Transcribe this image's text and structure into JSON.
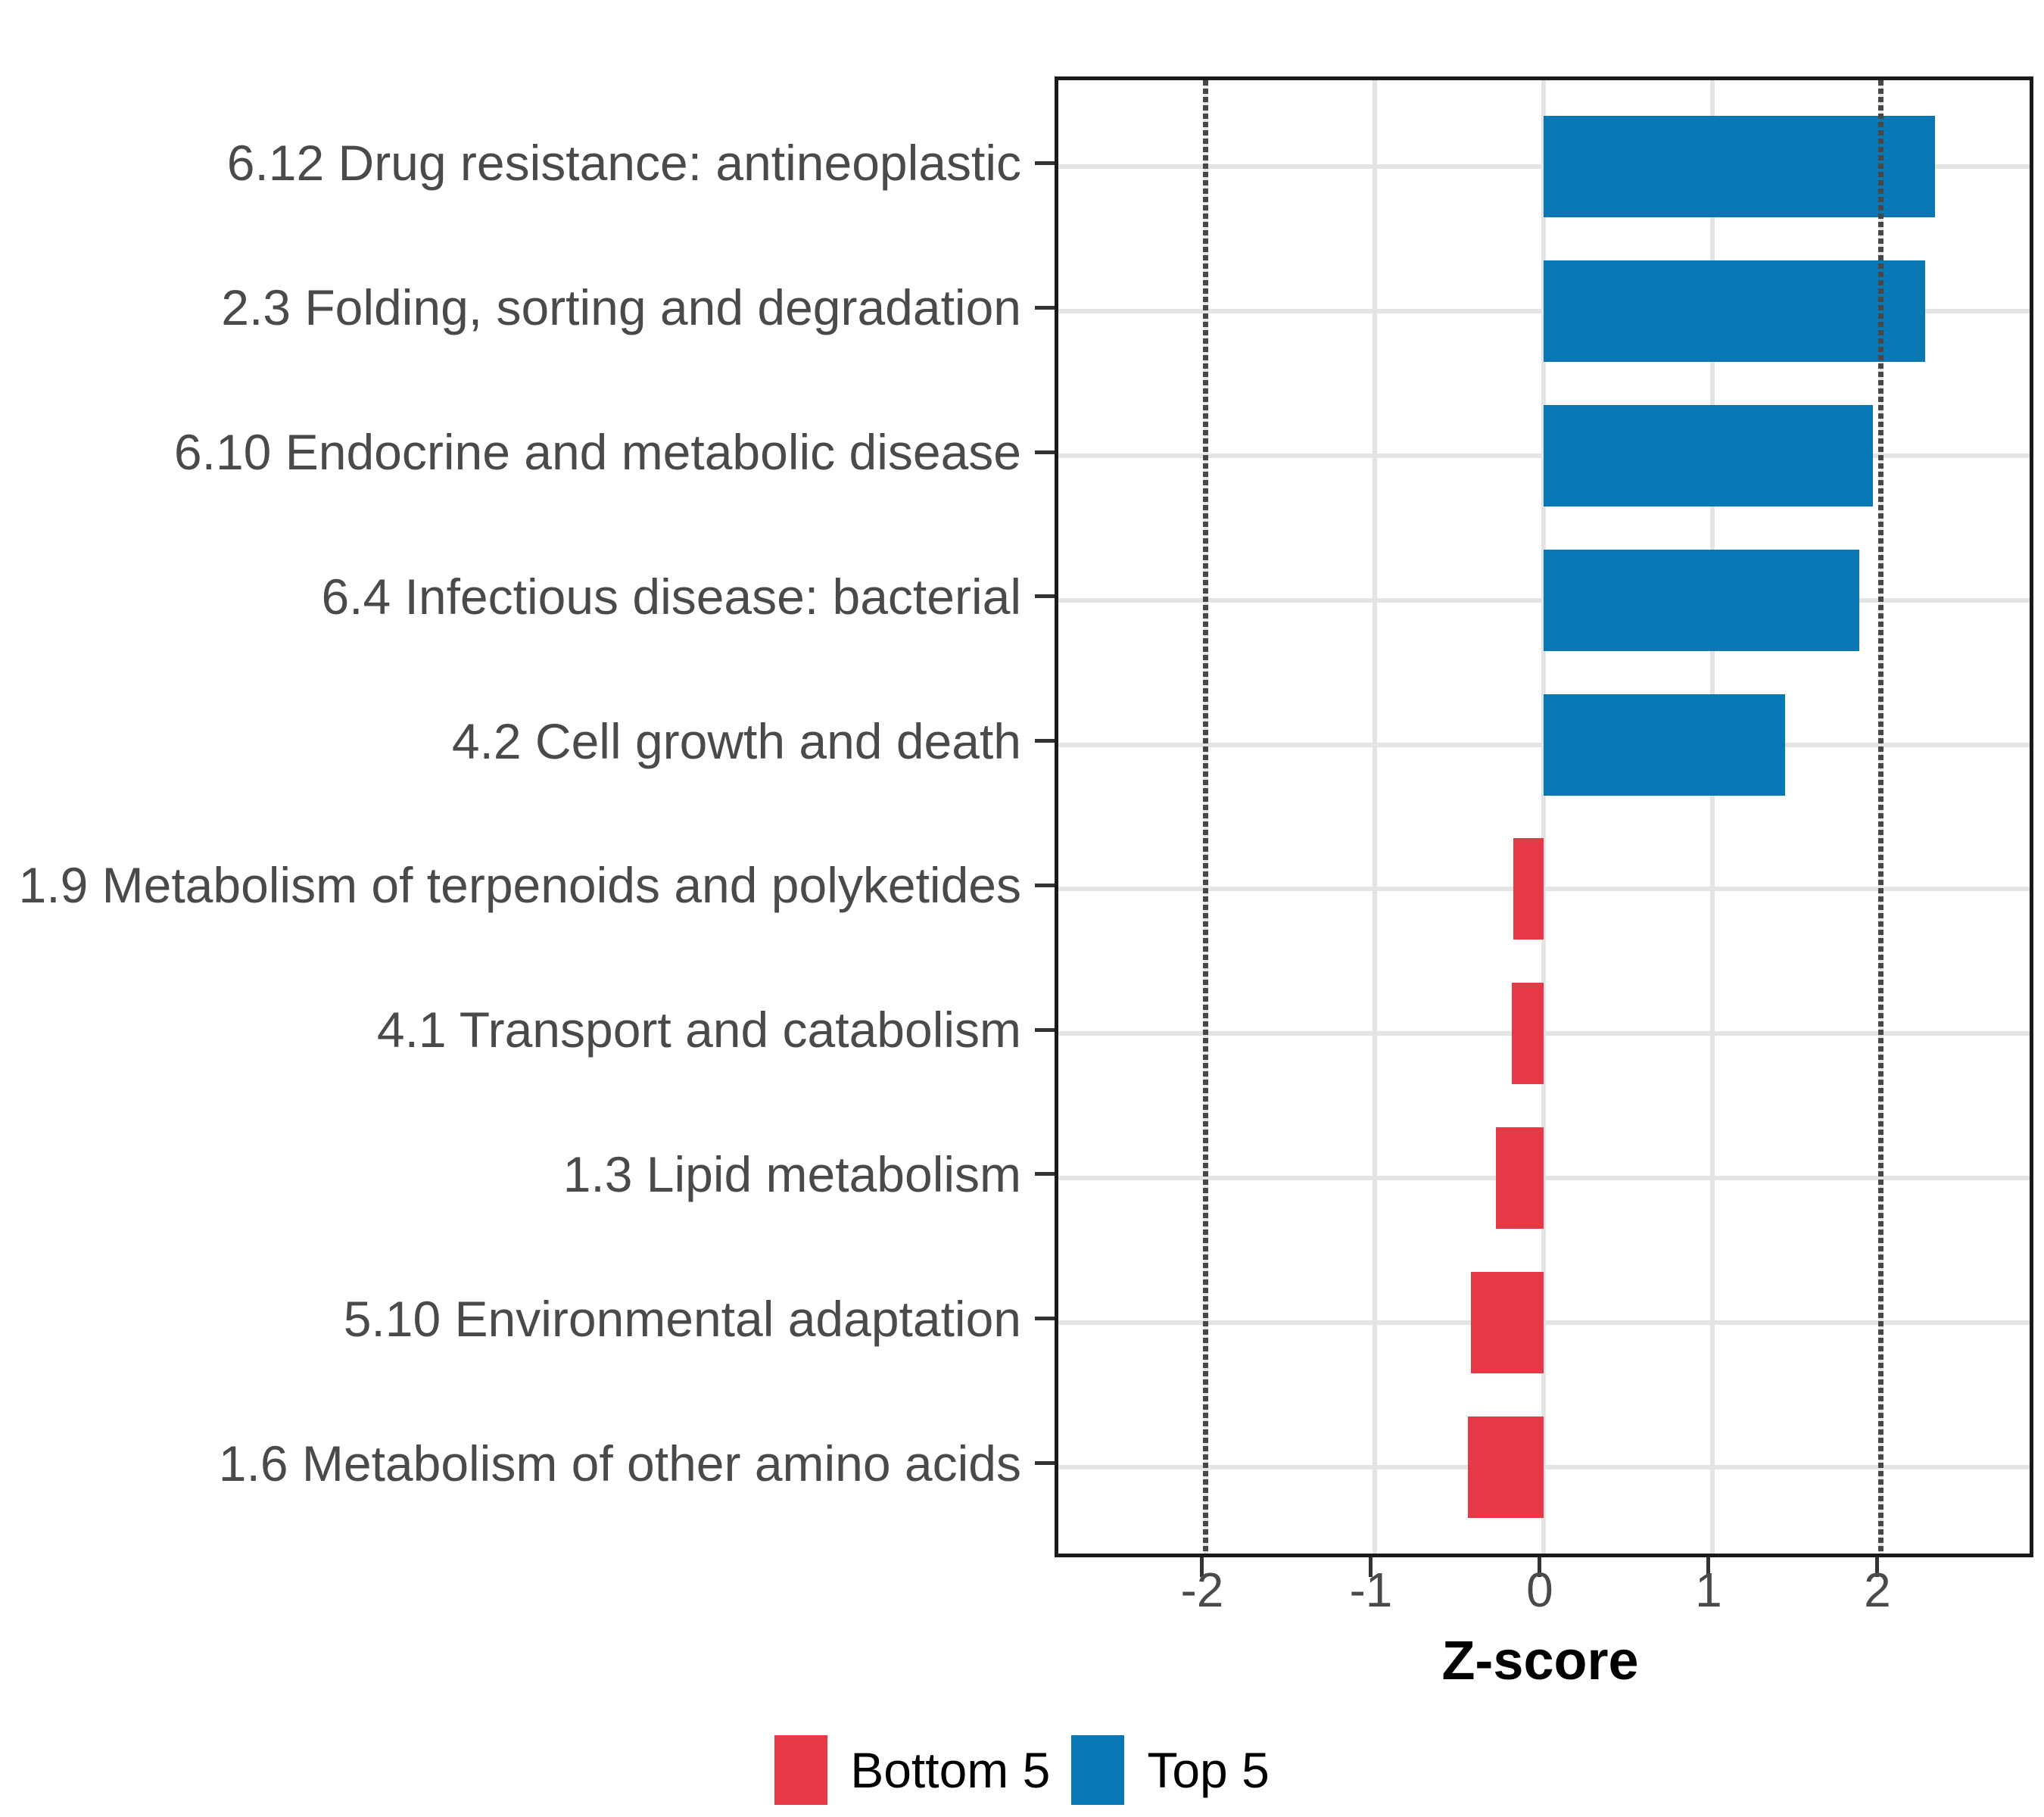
{
  "chart_data": {
    "type": "bar",
    "orientation": "horizontal",
    "title": "",
    "xlabel": "Z-score",
    "ylabel": "",
    "categories": [
      "6.12 Drug resistance: antineoplastic",
      "2.3 Folding, sorting and degradation",
      "6.10 Endocrine and metabolic disease",
      "6.4 Infectious disease: bacterial",
      "4.2 Cell growth and death",
      "1.9 Metabolism of terpenoids and polyketides",
      "4.1 Transport and catabolism",
      "1.3 Lipid metabolism",
      "5.10 Environmental adaptation",
      "1.6 Metabolism of other amino acids"
    ],
    "values": [
      2.32,
      2.26,
      1.95,
      1.87,
      1.43,
      -0.18,
      -0.19,
      -0.28,
      -0.43,
      -0.45
    ],
    "groups": [
      "Top 5",
      "Top 5",
      "Top 5",
      "Top 5",
      "Top 5",
      "Bottom 5",
      "Bottom 5",
      "Bottom 5",
      "Bottom 5",
      "Bottom 5"
    ],
    "x_ticks": [
      -2,
      -1,
      0,
      1,
      2
    ],
    "xlim": [
      -2.874,
      2.879
    ],
    "reference_lines": [
      -2,
      2
    ],
    "grid": true,
    "legend_position": "bottom",
    "legend": [
      {
        "label": "Bottom 5",
        "color": "#e63946"
      },
      {
        "label": "Top 5",
        "color": "#0877b4"
      }
    ],
    "colors": {
      "Top 5": "#0877b4",
      "Bottom 5": "#e63946"
    }
  }
}
